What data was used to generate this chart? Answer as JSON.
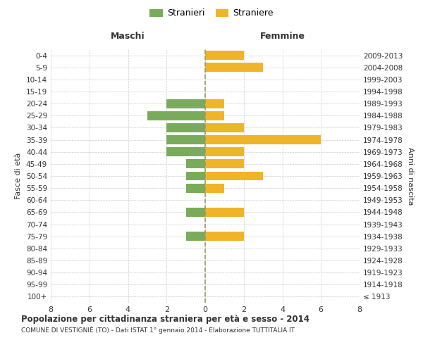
{
  "age_groups": [
    "100+",
    "95-99",
    "90-94",
    "85-89",
    "80-84",
    "75-79",
    "70-74",
    "65-69",
    "60-64",
    "55-59",
    "50-54",
    "45-49",
    "40-44",
    "35-39",
    "30-34",
    "25-29",
    "20-24",
    "15-19",
    "10-14",
    "5-9",
    "0-4"
  ],
  "birth_years": [
    "≤ 1913",
    "1914-1918",
    "1919-1923",
    "1924-1928",
    "1929-1933",
    "1934-1938",
    "1939-1943",
    "1944-1948",
    "1949-1953",
    "1954-1958",
    "1959-1963",
    "1964-1968",
    "1969-1973",
    "1974-1978",
    "1979-1983",
    "1984-1988",
    "1989-1993",
    "1994-1998",
    "1999-2003",
    "2004-2008",
    "2009-2013"
  ],
  "maschi": [
    0,
    0,
    0,
    0,
    0,
    1,
    0,
    1,
    0,
    1,
    1,
    1,
    2,
    2,
    2,
    3,
    2,
    0,
    0,
    0,
    0
  ],
  "femmine": [
    0,
    0,
    0,
    0,
    0,
    2,
    0,
    2,
    0,
    1,
    3,
    2,
    2,
    6,
    2,
    1,
    1,
    0,
    0,
    3,
    2
  ],
  "maschi_color": "#7aab5a",
  "femmine_color": "#f0b429",
  "title_main": "Popolazione per cittadinanza straniera per età e sesso - 2014",
  "title_sub": "COMUNE DI VESTIGNIÈ (TO) - Dati ISTAT 1° gennaio 2014 - Elaborazione TUTTITALIA.IT",
  "legend_maschi": "Stranieri",
  "legend_femmine": "Straniere",
  "xlabel_left": "Maschi",
  "xlabel_right": "Femmine",
  "ylabel_left": "Fasce di età",
  "ylabel_right": "Anni di nascita",
  "xlim": 8,
  "background_color": "#ffffff",
  "grid_color": "#cccccc",
  "bar_height": 0.75,
  "dashed_line_color": "#999966",
  "font_color": "#333333"
}
